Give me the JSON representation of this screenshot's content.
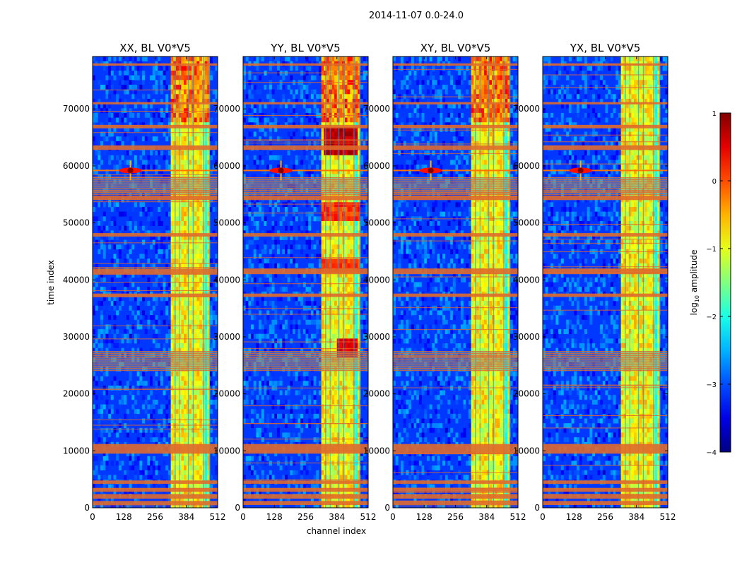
{
  "suptitle": "2014-11-07 0.0-24.0",
  "chart_data": {
    "type": "heatmap",
    "xlabel": "channel index",
    "ylabel": "time index",
    "xlim": [
      0,
      512
    ],
    "ylim": [
      0,
      79200
    ],
    "x_ticks": [
      0,
      128,
      256,
      384,
      512
    ],
    "y_ticks": [
      0,
      10000,
      20000,
      30000,
      40000,
      50000,
      60000,
      70000
    ],
    "colormap": "jet",
    "colorbar": {
      "label": "log10 amplitude",
      "label_prefix": "log",
      "label_sub": "10",
      "label_suffix": " amplitude",
      "range": [
        -4,
        1
      ],
      "ticks": [
        {
          "v": 1,
          "label": "1"
        },
        {
          "v": 0,
          "label": "0"
        },
        {
          "v": -1,
          "label": "−1"
        },
        {
          "v": -2,
          "label": "−2"
        },
        {
          "v": -3,
          "label": "−3"
        },
        {
          "v": -4,
          "label": "−4"
        }
      ]
    },
    "rfi_channel_band": [
      325,
      480
    ],
    "panels": [
      {
        "title": "XX, BL V0*V5"
      },
      {
        "title": "YY, BL V0*V5"
      },
      {
        "title": "XY, BL V0*V5"
      },
      {
        "title": "YX, BL V0*V5"
      }
    ],
    "flagged_time_ranges": [
      [
        500,
        1200
      ],
      [
        1600,
        2400
      ],
      [
        2800,
        3500
      ],
      [
        4200,
        4800
      ],
      [
        9500,
        11200
      ],
      [
        24000,
        27500
      ],
      [
        37000,
        37600
      ],
      [
        41000,
        42000
      ],
      [
        47600,
        48200
      ],
      [
        54000,
        54800
      ],
      [
        55000,
        58000
      ],
      [
        62800,
        63600
      ],
      [
        66600,
        67200
      ],
      [
        70800,
        71200
      ],
      [
        77600,
        78000
      ]
    ],
    "bright_source": {
      "time": 59200,
      "channel": 155
    }
  },
  "colors": {
    "background": "#ffffff",
    "flag_line": "#e06a2a",
    "flag_grey": "#8a8a8a"
  }
}
